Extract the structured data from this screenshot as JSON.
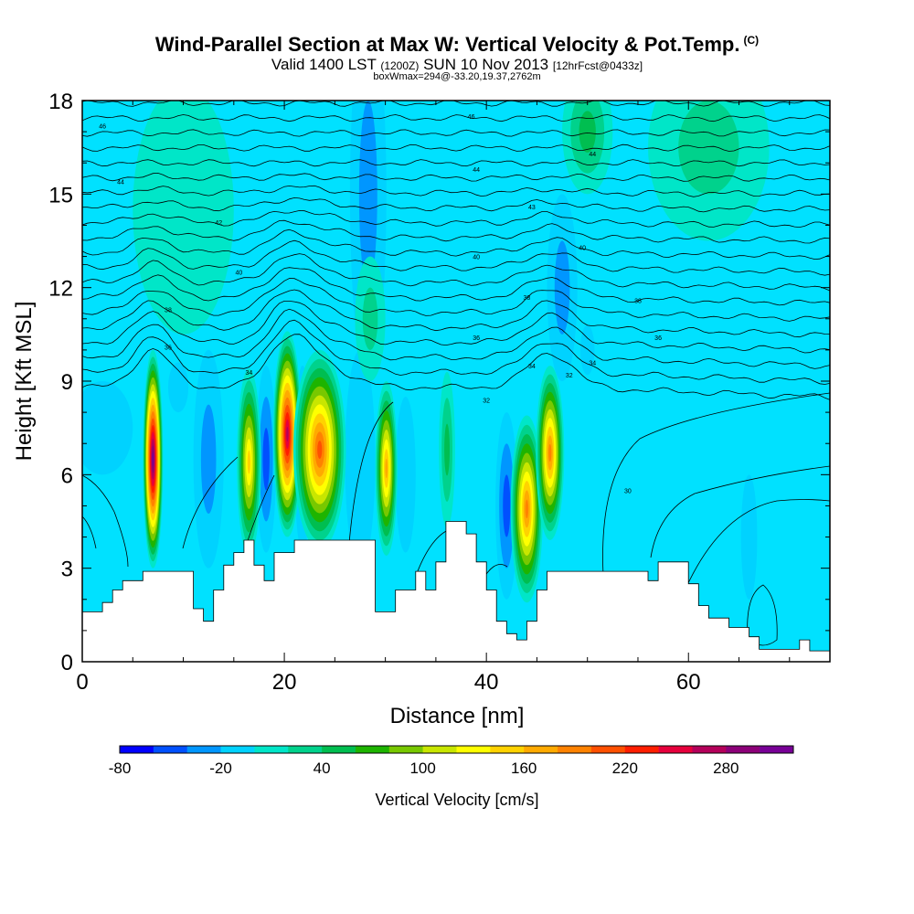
{
  "header": {
    "title": "Wind-Parallel Section at Max W: Vertical Velocity & Pot.Temp.",
    "title_mark": "(C)",
    "valid_prefix": "Valid 1400 LST",
    "valid_zulu": "(1200Z)",
    "valid_date": "SUN 10 Nov 2013",
    "forecast": "[12hrFcst@0433z]",
    "box_info": "boxWmax=294@-33.20,19.37,2762m"
  },
  "chart_data": {
    "type": "heatmap",
    "xlabel": "Distance [nm]",
    "ylabel": "Height [Kft MSL]",
    "xlim": [
      0,
      74
    ],
    "ylim": [
      0,
      18
    ],
    "x_ticks": [
      0,
      20,
      40,
      60
    ],
    "y_ticks": [
      0,
      3,
      6,
      9,
      12,
      15,
      18
    ],
    "colorbar": {
      "label": "Vertical Velocity [cm/s]",
      "tick_labels": [
        "-80",
        "-20",
        "40",
        "100",
        "160",
        "220",
        "280"
      ],
      "tick_values": [
        -80,
        -20,
        40,
        100,
        160,
        220,
        280
      ],
      "min": -80,
      "max": 310,
      "step": 20,
      "colors": [
        "#0000ff",
        "#0050ff",
        "#0096ff",
        "#00d2ff",
        "#00e6c8",
        "#00d28c",
        "#00be50",
        "#1eb400",
        "#78c800",
        "#c8e600",
        "#ffff00",
        "#ffd200",
        "#ffaa00",
        "#ff8200",
        "#ff5000",
        "#ff1e00",
        "#e6003c",
        "#b4005a",
        "#8c0078",
        "#780096"
      ]
    },
    "background_color": "#00e1ff",
    "terrain": [
      [
        0,
        1.6
      ],
      [
        2,
        1.9
      ],
      [
        3,
        2.3
      ],
      [
        4,
        2.6
      ],
      [
        6,
        2.9
      ],
      [
        10,
        2.9
      ],
      [
        11,
        1.7
      ],
      [
        12,
        1.3
      ],
      [
        13,
        2.3
      ],
      [
        14,
        3.1
      ],
      [
        15,
        3.5
      ],
      [
        16,
        3.9
      ],
      [
        17,
        3.1
      ],
      [
        18,
        2.6
      ],
      [
        19,
        3.5
      ],
      [
        21,
        3.9
      ],
      [
        24,
        3.9
      ],
      [
        28,
        3.9
      ],
      [
        29,
        1.6
      ],
      [
        31,
        2.3
      ],
      [
        33,
        2.9
      ],
      [
        34,
        2.3
      ],
      [
        35,
        3.2
      ],
      [
        36,
        4.5
      ],
      [
        38,
        4.1
      ],
      [
        39,
        3.2
      ],
      [
        40,
        2.3
      ],
      [
        41,
        1.3
      ],
      [
        42,
        0.9
      ],
      [
        43,
        0.7
      ],
      [
        44,
        1.3
      ],
      [
        45,
        2.3
      ],
      [
        46,
        2.9
      ],
      [
        55,
        2.9
      ],
      [
        56,
        2.6
      ],
      [
        57,
        3.2
      ],
      [
        59,
        3.2
      ],
      [
        60,
        2.5
      ],
      [
        61,
        1.8
      ],
      [
        62,
        1.4
      ],
      [
        64,
        1.1
      ],
      [
        66,
        0.8
      ],
      [
        67,
        0.4
      ],
      [
        70,
        0.4
      ],
      [
        71,
        0.7
      ],
      [
        72,
        0.35
      ],
      [
        74,
        0.35
      ]
    ],
    "updrafts": [
      {
        "x": 7,
        "y": 6.5,
        "rx": 1.0,
        "ry": 3.5,
        "w": 300
      },
      {
        "x": 16.5,
        "y": 6.4,
        "rx": 1.2,
        "ry": 3.0,
        "w": 140
      },
      {
        "x": 20.3,
        "y": 7.3,
        "rx": 1.4,
        "ry": 3.3,
        "w": 260
      },
      {
        "x": 23.5,
        "y": 6.8,
        "rx": 2.6,
        "ry": 3.2,
        "w": 210
      },
      {
        "x": 30.1,
        "y": 6.2,
        "rx": 1.1,
        "ry": 2.8,
        "w": 160
      },
      {
        "x": 36.1,
        "y": 6.8,
        "rx": 0.8,
        "ry": 2.5,
        "w": 40
      },
      {
        "x": 44.0,
        "y": 4.9,
        "rx": 1.6,
        "ry": 3.0,
        "w": 190
      },
      {
        "x": 46.3,
        "y": 6.7,
        "rx": 1.4,
        "ry": 2.8,
        "w": 180
      },
      {
        "x": 28.5,
        "y": 11.0,
        "rx": 1.5,
        "ry": 2.0,
        "w": 20
      },
      {
        "x": 50.0,
        "y": 17.0,
        "rx": 2.5,
        "ry": 2.0,
        "w": 50
      },
      {
        "x": 62.0,
        "y": 16.5,
        "rx": 6.0,
        "ry": 3.0,
        "w": 20
      },
      {
        "x": 10.0,
        "y": 14.5,
        "rx": 5.0,
        "ry": 4.0,
        "w": 10
      }
    ],
    "downdrafts": [
      {
        "x": 2,
        "y": 7.5,
        "rx": 3.0,
        "ry": 1.5,
        "w": -30
      },
      {
        "x": 12.5,
        "y": 6.5,
        "rx": 1.5,
        "ry": 3.5,
        "w": -50
      },
      {
        "x": 18.2,
        "y": 6.5,
        "rx": 1.0,
        "ry": 3.0,
        "w": -70
      },
      {
        "x": 28.3,
        "y": 15.0,
        "rx": 1.8,
        "ry": 6.0,
        "w": -50
      },
      {
        "x": 21.8,
        "y": 6.5,
        "rx": 0.8,
        "ry": 3.0,
        "w": -40
      },
      {
        "x": 27.5,
        "y": 6.5,
        "rx": 1.5,
        "ry": 3.5,
        "w": -30
      },
      {
        "x": 42.0,
        "y": 5.0,
        "rx": 1.1,
        "ry": 3.0,
        "w": -70
      },
      {
        "x": 32.0,
        "y": 6.0,
        "rx": 1.0,
        "ry": 2.5,
        "w": -25
      },
      {
        "x": 47.5,
        "y": 12.0,
        "rx": 1.5,
        "ry": 3.0,
        "w": -50
      },
      {
        "x": 50.0,
        "y": 10.0,
        "rx": 0.7,
        "ry": 0.8,
        "w": -30
      },
      {
        "x": 66.0,
        "y": 4.0,
        "rx": 0.8,
        "ry": 2.0,
        "w": -30
      },
      {
        "x": 9.5,
        "y": 8.8,
        "rx": 1.0,
        "ry": 0.8,
        "w": -30
      }
    ],
    "isentrope_labels": [
      {
        "text": "46",
        "x": 2,
        "y": 17.2
      },
      {
        "text": "46",
        "x": 38.5,
        "y": 17.5
      },
      {
        "text": "44",
        "x": 3.8,
        "y": 15.4
      },
      {
        "text": "44",
        "x": 39,
        "y": 15.8
      },
      {
        "text": "44",
        "x": 50.5,
        "y": 16.3
      },
      {
        "text": "42",
        "x": 13.5,
        "y": 14.1
      },
      {
        "text": "43",
        "x": 44.5,
        "y": 14.6
      },
      {
        "text": "40",
        "x": 15.5,
        "y": 12.5
      },
      {
        "text": "40",
        "x": 39,
        "y": 13.0
      },
      {
        "text": "40",
        "x": 49.5,
        "y": 13.3
      },
      {
        "text": "38",
        "x": 8.5,
        "y": 11.3
      },
      {
        "text": "38",
        "x": 44,
        "y": 11.7
      },
      {
        "text": "38",
        "x": 55,
        "y": 11.6
      },
      {
        "text": "36",
        "x": 8.5,
        "y": 10.1
      },
      {
        "text": "36",
        "x": 39,
        "y": 10.4
      },
      {
        "text": "36",
        "x": 57,
        "y": 10.4
      },
      {
        "text": "34",
        "x": 16.5,
        "y": 9.3
      },
      {
        "text": "34",
        "x": 44.5,
        "y": 9.5
      },
      {
        "text": "34",
        "x": 50.5,
        "y": 9.6
      },
      {
        "text": "32",
        "x": 40,
        "y": 8.4
      },
      {
        "text": "32",
        "x": 48.2,
        "y": 9.2
      },
      {
        "text": "30",
        "x": 54,
        "y": 5.5
      }
    ]
  }
}
